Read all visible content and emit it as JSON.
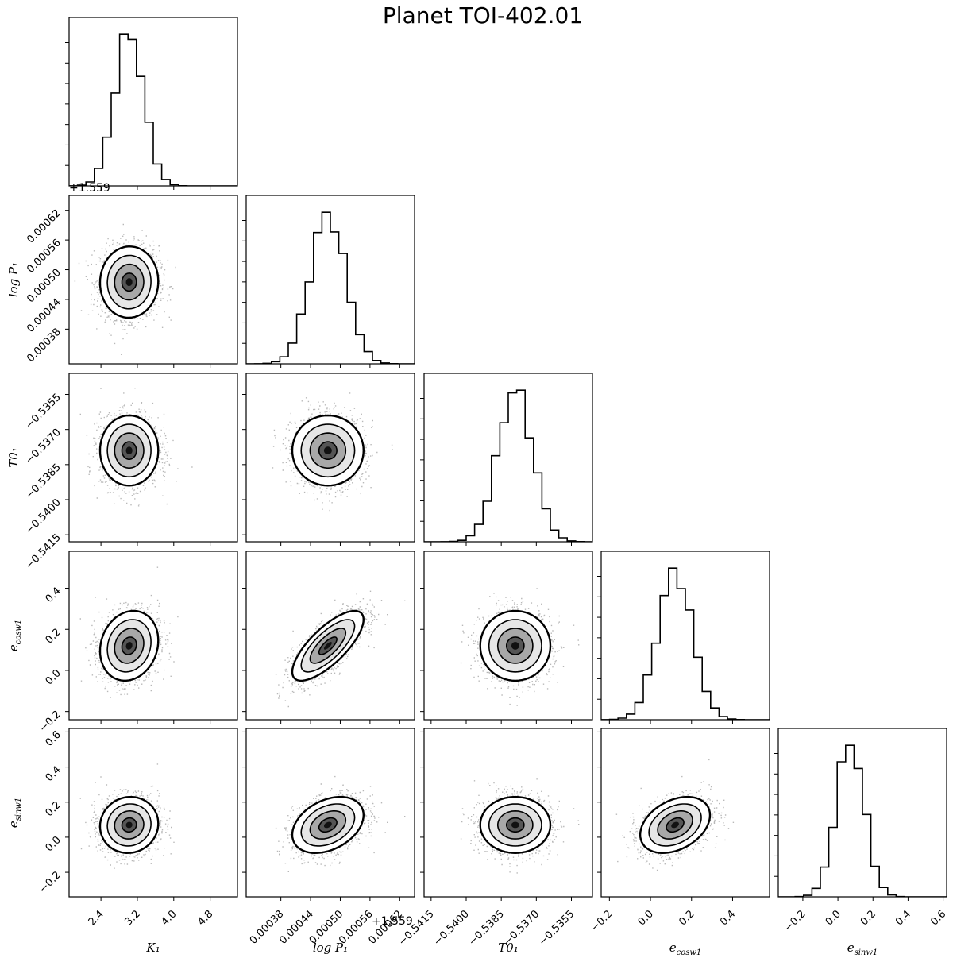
{
  "chart_data": {
    "type": "corner",
    "title": "Planet TOI-402.01",
    "parameters": [
      {
        "name": "K1",
        "label": "K₁",
        "range": [
          1.7,
          5.4
        ],
        "ticks": [
          2.4,
          3.2,
          4.0,
          4.8
        ],
        "tick_labels": [
          "2.4",
          "3.2",
          "4.0",
          "4.8"
        ],
        "mean": 3.02,
        "sd": 0.32,
        "offset": ""
      },
      {
        "name": "logP1",
        "label": "log P₁",
        "range": [
          0.00031,
          0.00065
        ],
        "ticks": [
          0.00038,
          0.00044,
          0.0005,
          0.00056,
          0.00062
        ],
        "tick_labels": [
          "0.00038",
          "0.00044",
          "0.00050",
          "0.00056",
          "0.00062"
        ],
        "mean": 0.000475,
        "sd": 3.6e-05,
        "offset": "+1.559"
      },
      {
        "name": "T01",
        "label": "T0₁",
        "range": [
          -0.5418,
          -0.5346
        ],
        "ticks": [
          -0.5415,
          -0.54,
          -0.5385,
          -0.537,
          -0.5355
        ],
        "tick_labels": [
          "−0.5415",
          "−0.5400",
          "−0.5385",
          "−0.5370",
          "−0.5355"
        ],
        "mean": -0.5379,
        "sd": 0.00075,
        "offset": ""
      },
      {
        "name": "ecosw1",
        "label": "e_cosw1",
        "range": [
          -0.24,
          0.58
        ],
        "ticks": [
          -0.2,
          0.0,
          0.2,
          0.4
        ],
        "tick_labels": [
          "−0.2",
          "0.0",
          "0.2",
          "0.4"
        ],
        "mean": 0.12,
        "sd": 0.085,
        "offset": ""
      },
      {
        "name": "esinw1",
        "label": "e_sinw1",
        "range": [
          -0.34,
          0.62
        ],
        "ticks": [
          -0.2,
          0.0,
          0.2,
          0.4,
          0.6
        ],
        "tick_labels": [
          "−0.2",
          "0.0",
          "0.2",
          "0.4",
          "0.6"
        ],
        "mean": 0.07,
        "sd": 0.08,
        "offset": ""
      }
    ],
    "correlations": {
      "0-1": 0.02,
      "0-2": 0.0,
      "0-3": 0.15,
      "0-4": 0.05,
      "1-2": 0.0,
      "1-3": 0.75,
      "1-4": 0.35,
      "2-3": 0.0,
      "2-4": 0.0,
      "3-4": 0.35
    },
    "histogram_bins": 20,
    "contour_levels_sigma": [
      0.5,
      1.0,
      1.5,
      2.0
    ]
  }
}
